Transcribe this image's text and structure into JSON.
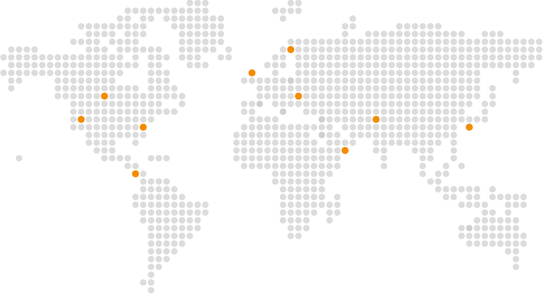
{
  "map": {
    "style": "dotted-world-map",
    "land_color": "#dcdcdc",
    "land_color_muted": "#cfcfcf",
    "marker_color": "#f28c00",
    "marker_icon": "location-dot-icon",
    "background_color": "#ffffff"
  }
}
